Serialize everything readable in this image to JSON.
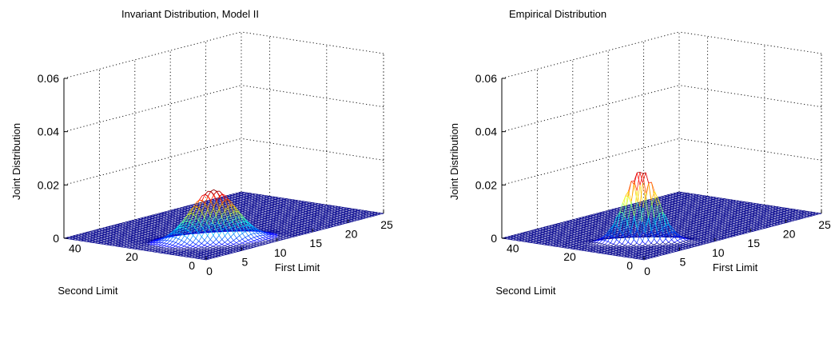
{
  "chart_data": [
    {
      "type": "surface",
      "title": "Invariant Distribution, Model II",
      "xlabel": "First Limit",
      "ylabel": "Second Limit",
      "zlabel": "Joint Distribution",
      "xlim": [
        0,
        25
      ],
      "ylim": [
        0,
        50
      ],
      "zlim": [
        0,
        0.06
      ],
      "xticks": [
        "0",
        "5",
        "10",
        "15",
        "20",
        "25"
      ],
      "yticks": [
        "0",
        "20",
        "40"
      ],
      "zticks": [
        "0",
        "0.02",
        "0.04",
        "0.06"
      ],
      "grid": true,
      "colormap": "jet",
      "peak": {
        "x": 7,
        "y": 15,
        "z": 0.019
      },
      "spread": {
        "x": 1.9,
        "y": 4.5
      },
      "correlation": -0.55
    },
    {
      "type": "surface",
      "title": "Empirical Distribution",
      "xlabel": "First Limit",
      "ylabel": "Second Limit",
      "zlabel": "Joint Distribution",
      "xlim": [
        0,
        25
      ],
      "ylim": [
        0,
        50
      ],
      "zlim": [
        0,
        0.06
      ],
      "xticks": [
        "0",
        "5",
        "10",
        "15",
        "20",
        "25"
      ],
      "yticks": [
        "0",
        "20",
        "40"
      ],
      "zticks": [
        "0",
        "0.02",
        "0.04",
        "0.06"
      ],
      "grid": true,
      "colormap": "jet",
      "peak": {
        "x": 6,
        "y": 16,
        "z": 0.027
      },
      "spread": {
        "x": 1.1,
        "y": 3.6
      },
      "correlation": -0.75
    }
  ]
}
